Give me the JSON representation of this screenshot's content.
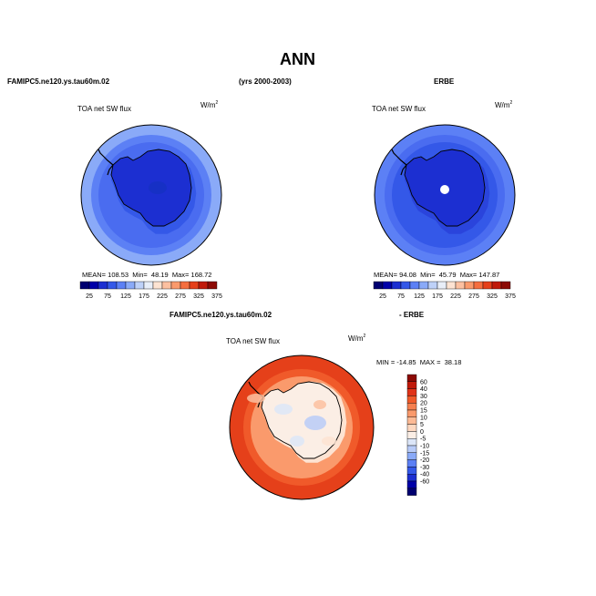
{
  "header": {
    "title": "ANN",
    "case_name": "FAMIPC5.ne120.ys.tau60m.02",
    "years": "(yrs 2000-2003)",
    "obs_name": "ERBE"
  },
  "panels": {
    "model": {
      "variable": "TOA net SW flux",
      "units": "W/m",
      "units_exp": "2",
      "stats": {
        "mean_label": "MEAN=",
        "mean": "108.53",
        "min_label": "Min=",
        "min": "48.19",
        "max_label": "Max=",
        "max": "168.72"
      }
    },
    "obs": {
      "variable": "TOA net SW flux",
      "units": "W/m",
      "units_exp": "2",
      "stats": {
        "mean_label": "MEAN=",
        "mean": "94.08",
        "min_label": "Min=",
        "min": "45.79",
        "max_label": "Max=",
        "max": "147.87"
      }
    },
    "diff": {
      "title_left": "FAMIPC5.ne120.ys.tau60m.02",
      "title_right": "- ERBE",
      "variable": "TOA net SW flux",
      "units": "W/m",
      "units_exp": "2",
      "range_text": "MIN = -14.85  MAX =  38.18"
    }
  },
  "abs_colorbar": {
    "colors": [
      "#000070",
      "#0000a8",
      "#1c2fd1",
      "#3458e8",
      "#5c80f5",
      "#8aaaf8",
      "#bed1f8",
      "#e8eef8",
      "#fde3d2",
      "#fcc0a0",
      "#fa9a6c",
      "#f56e3e",
      "#e5401a",
      "#c01a0a",
      "#8c0a05"
    ],
    "labels": [
      "25",
      "75",
      "125",
      "175",
      "225",
      "275",
      "325",
      "375"
    ]
  },
  "diff_colorbar": {
    "colors": [
      "#8c0a05",
      "#c01a0a",
      "#e03318",
      "#f05a2a",
      "#f58050",
      "#fa9a6c",
      "#fcba95",
      "#fdd8c0",
      "#fbeee5",
      "#dce6f8",
      "#b8cbf8",
      "#8aaaf8",
      "#5c80f5",
      "#3458e8",
      "#1c2fd1",
      "#0000a8",
      "#000070"
    ],
    "labels": [
      "60",
      "40",
      "30",
      "20",
      "15",
      "10",
      "5",
      "0",
      "-5",
      "-10",
      "-15",
      "-20",
      "-30",
      "-40",
      "-60"
    ]
  },
  "map_colors": {
    "model_shades": [
      "#1c2fd1",
      "#3458e8",
      "#4a6cf0",
      "#5c80f5",
      "#8aaaf8"
    ],
    "obs_shades": [
      "#1c2fd1",
      "#2a44dc",
      "#3458e8",
      "#4a6cf0",
      "#5c80f5"
    ],
    "diff_shades": [
      "#e5401a",
      "#f05a2a",
      "#fa9a6c",
      "#fcc0a0",
      "#fde3d2",
      "#fbeee5",
      "#dce6f8",
      "#b8cbf8"
    ],
    "coastline": "#000000",
    "missing": "#ffffff"
  }
}
